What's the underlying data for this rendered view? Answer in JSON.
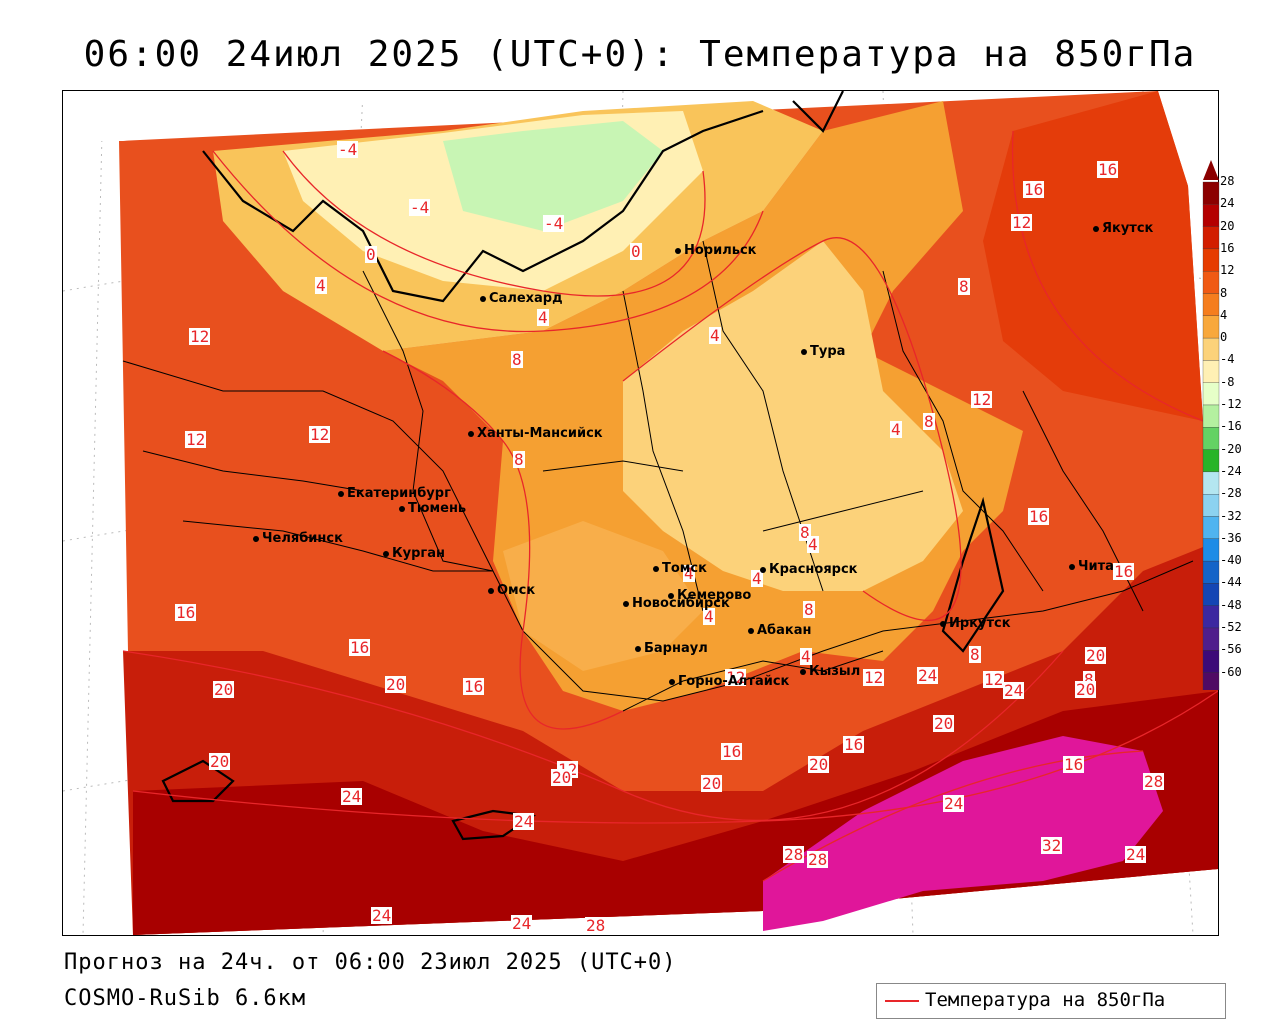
{
  "title": "06:00 24июл 2025 (UTC+0): Температура на 850гПа",
  "forecast_line": "Прогноз на 24ч. от 06:00 23июл 2025 (UTC+0)",
  "model_line": "COSMO-RuSib 6.6км",
  "legend": {
    "label": "Температура на 850гПа",
    "color": "#e8262a"
  },
  "colorbar": {
    "ticks": [
      "28",
      "24",
      "20",
      "16",
      "12",
      "8",
      "4",
      "0",
      "-4",
      "-8",
      "-12",
      "-16",
      "-20",
      "-24",
      "-28",
      "-32",
      "-36",
      "-40",
      "-44",
      "-48",
      "-52",
      "-56",
      "-60"
    ],
    "colors": [
      "#8b0000",
      "#b40000",
      "#d21e00",
      "#e63c00",
      "#f05a14",
      "#f57d1e",
      "#f8a83c",
      "#fcd27a",
      "#fff0b4",
      "#e6ffc8",
      "#b4f0a0",
      "#64d264",
      "#28b428",
      "#b4e6f0",
      "#8cd2f0",
      "#50b4f0",
      "#1e8ce6",
      "#1464c8",
      "#1446b4",
      "#3c28a0",
      "#501e8c",
      "#3c0a78",
      "#500a64"
    ]
  },
  "cities": [
    {
      "name": "Норильск"
    },
    {
      "name": "Якутск"
    },
    {
      "name": "Салехард"
    },
    {
      "name": "Тура"
    },
    {
      "name": "Ханты-Мансийск"
    },
    {
      "name": "Екатеринбург"
    },
    {
      "name": "Тюмень"
    },
    {
      "name": "Челябинск"
    },
    {
      "name": "Курган"
    },
    {
      "name": "Омск"
    },
    {
      "name": "Томск"
    },
    {
      "name": "Красноярск"
    },
    {
      "name": "Новосибирск"
    },
    {
      "name": "Кемерово"
    },
    {
      "name": "Абакан"
    },
    {
      "name": "Иркутск"
    },
    {
      "name": "Чита"
    },
    {
      "name": "Барнаул"
    },
    {
      "name": "Горно-Алтайск"
    },
    {
      "name": "Кызыл"
    }
  ],
  "contour_labels": [
    "-4",
    "-4",
    "-4",
    "0",
    "0",
    "4",
    "4",
    "4",
    "4",
    "8",
    "8",
    "8",
    "8",
    "8",
    "8",
    "8",
    "8",
    "12",
    "12",
    "12",
    "12",
    "12",
    "12",
    "12",
    "12",
    "12",
    "16",
    "16",
    "16",
    "16",
    "16",
    "16",
    "16",
    "16",
    "16",
    "16",
    "20",
    "20",
    "20",
    "20",
    "20",
    "20",
    "20",
    "20",
    "20",
    "24",
    "24",
    "24",
    "24",
    "24",
    "24",
    "24",
    "24",
    "28",
    "28",
    "28",
    "28",
    "32",
    "4",
    "4",
    "4",
    "4",
    "4"
  ]
}
